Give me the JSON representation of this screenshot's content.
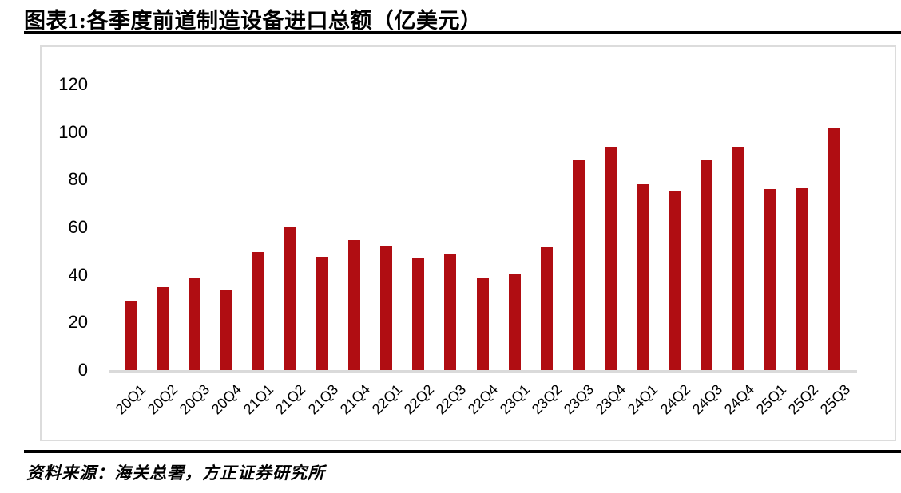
{
  "header": {
    "title": "图表1:各季度前道制造设备进口总额（亿美元）"
  },
  "footer": {
    "source": "资料来源：海关总署，方正证券研究所"
  },
  "colors": {
    "bar": "#b00d12",
    "axis_line": "#dadada",
    "panel_border": "#dcdcdc",
    "rule": "#000000",
    "text": "#000000"
  },
  "chart_data": {
    "type": "bar",
    "title": "各季度前道制造设备进口总额（亿美元）",
    "xlabel": "",
    "ylabel": "",
    "categories": [
      "20Q1",
      "20Q2",
      "20Q3",
      "20Q4",
      "21Q1",
      "21Q2",
      "21Q3",
      "21Q4",
      "22Q1",
      "22Q2",
      "22Q3",
      "22Q4",
      "23Q1",
      "23Q2",
      "23Q3",
      "23Q4",
      "24Q1",
      "24Q2",
      "24Q3",
      "24Q4",
      "25Q1",
      "25Q2",
      "25Q3"
    ],
    "values": [
      29,
      35,
      38.5,
      33.5,
      49.5,
      60.5,
      47.5,
      54.5,
      52,
      47,
      49,
      39,
      40.5,
      51.5,
      88.5,
      94,
      78,
      75.5,
      88.5,
      94,
      76,
      76.5,
      102
    ],
    "ylim": [
      0,
      120
    ],
    "ytick_interval": 20,
    "grid": false,
    "legend": "none",
    "bar_color": "#b00d12"
  }
}
